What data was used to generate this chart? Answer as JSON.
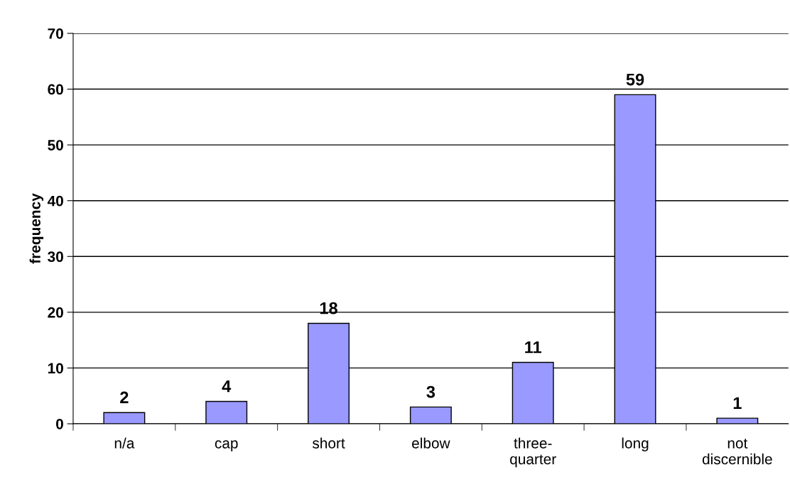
{
  "chart_data": {
    "type": "bar",
    "ylabel": "frequency",
    "categories": [
      "n/a",
      "cap",
      "short",
      "elbow",
      "three-\nquarter",
      "long",
      "not\ndiscernible"
    ],
    "values": [
      2,
      4,
      18,
      3,
      11,
      59,
      1
    ],
    "color": "#9999ff",
    "ylim": [
      0,
      70
    ],
    "yticks": [
      0,
      10,
      20,
      30,
      40,
      50,
      60,
      70
    ],
    "grid": "y",
    "data_labels": true,
    "legend": false
  }
}
